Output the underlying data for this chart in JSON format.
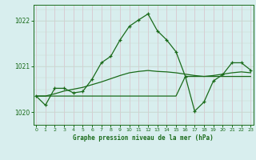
{
  "bg_color": "#d8eeee",
  "grid_color_v": "#d8c0c8",
  "grid_color_h": "#c8d8d0",
  "line_color": "#1a6b1a",
  "title": "Graphe pression niveau de la mer (hPa)",
  "ylabel_ticks": [
    1020,
    1021,
    1022
  ],
  "x_labels": [
    "0",
    "1",
    "2",
    "3",
    "4",
    "5",
    "6",
    "7",
    "8",
    "9",
    "10",
    "11",
    "12",
    "13",
    "14",
    "15",
    "16",
    "17",
    "18",
    "19",
    "20",
    "21",
    "22",
    "23"
  ],
  "series1_x": [
    0,
    1,
    2,
    3,
    4,
    5,
    6,
    7,
    8,
    9,
    10,
    11,
    12,
    13,
    14,
    15,
    16,
    17,
    18,
    19,
    20,
    21,
    22,
    23
  ],
  "series1_y": [
    1020.35,
    1020.15,
    1020.52,
    1020.52,
    1020.42,
    1020.45,
    1020.72,
    1021.08,
    1021.22,
    1021.58,
    1021.88,
    1022.02,
    1022.15,
    1021.78,
    1021.58,
    1021.32,
    1020.78,
    1020.02,
    1020.22,
    1020.68,
    1020.82,
    1021.08,
    1021.08,
    1020.92
  ],
  "series2_x": [
    0,
    1,
    2,
    3,
    4,
    5,
    6,
    7,
    8,
    9,
    10,
    11,
    12,
    13,
    14,
    15,
    16,
    17,
    18,
    19,
    20,
    21,
    22,
    23
  ],
  "series2_y": [
    1020.35,
    1020.35,
    1020.35,
    1020.35,
    1020.35,
    1020.35,
    1020.35,
    1020.35,
    1020.35,
    1020.35,
    1020.35,
    1020.35,
    1020.35,
    1020.35,
    1020.35,
    1020.35,
    1020.78,
    1020.78,
    1020.78,
    1020.78,
    1020.78,
    1020.78,
    1020.78,
    1020.78
  ],
  "series3_x": [
    0,
    1,
    2,
    3,
    4,
    5,
    6,
    7,
    8,
    9,
    10,
    11,
    12,
    13,
    14,
    15,
    16,
    17,
    18,
    19,
    20,
    21,
    22,
    23
  ],
  "series3_y": [
    1020.35,
    1020.35,
    1020.4,
    1020.46,
    1020.5,
    1020.54,
    1020.6,
    1020.66,
    1020.73,
    1020.8,
    1020.86,
    1020.89,
    1020.91,
    1020.89,
    1020.88,
    1020.86,
    1020.83,
    1020.8,
    1020.78,
    1020.8,
    1020.83,
    1020.86,
    1020.88,
    1020.86
  ],
  "ylim": [
    1019.72,
    1022.35
  ],
  "xlim": [
    -0.3,
    23.3
  ]
}
